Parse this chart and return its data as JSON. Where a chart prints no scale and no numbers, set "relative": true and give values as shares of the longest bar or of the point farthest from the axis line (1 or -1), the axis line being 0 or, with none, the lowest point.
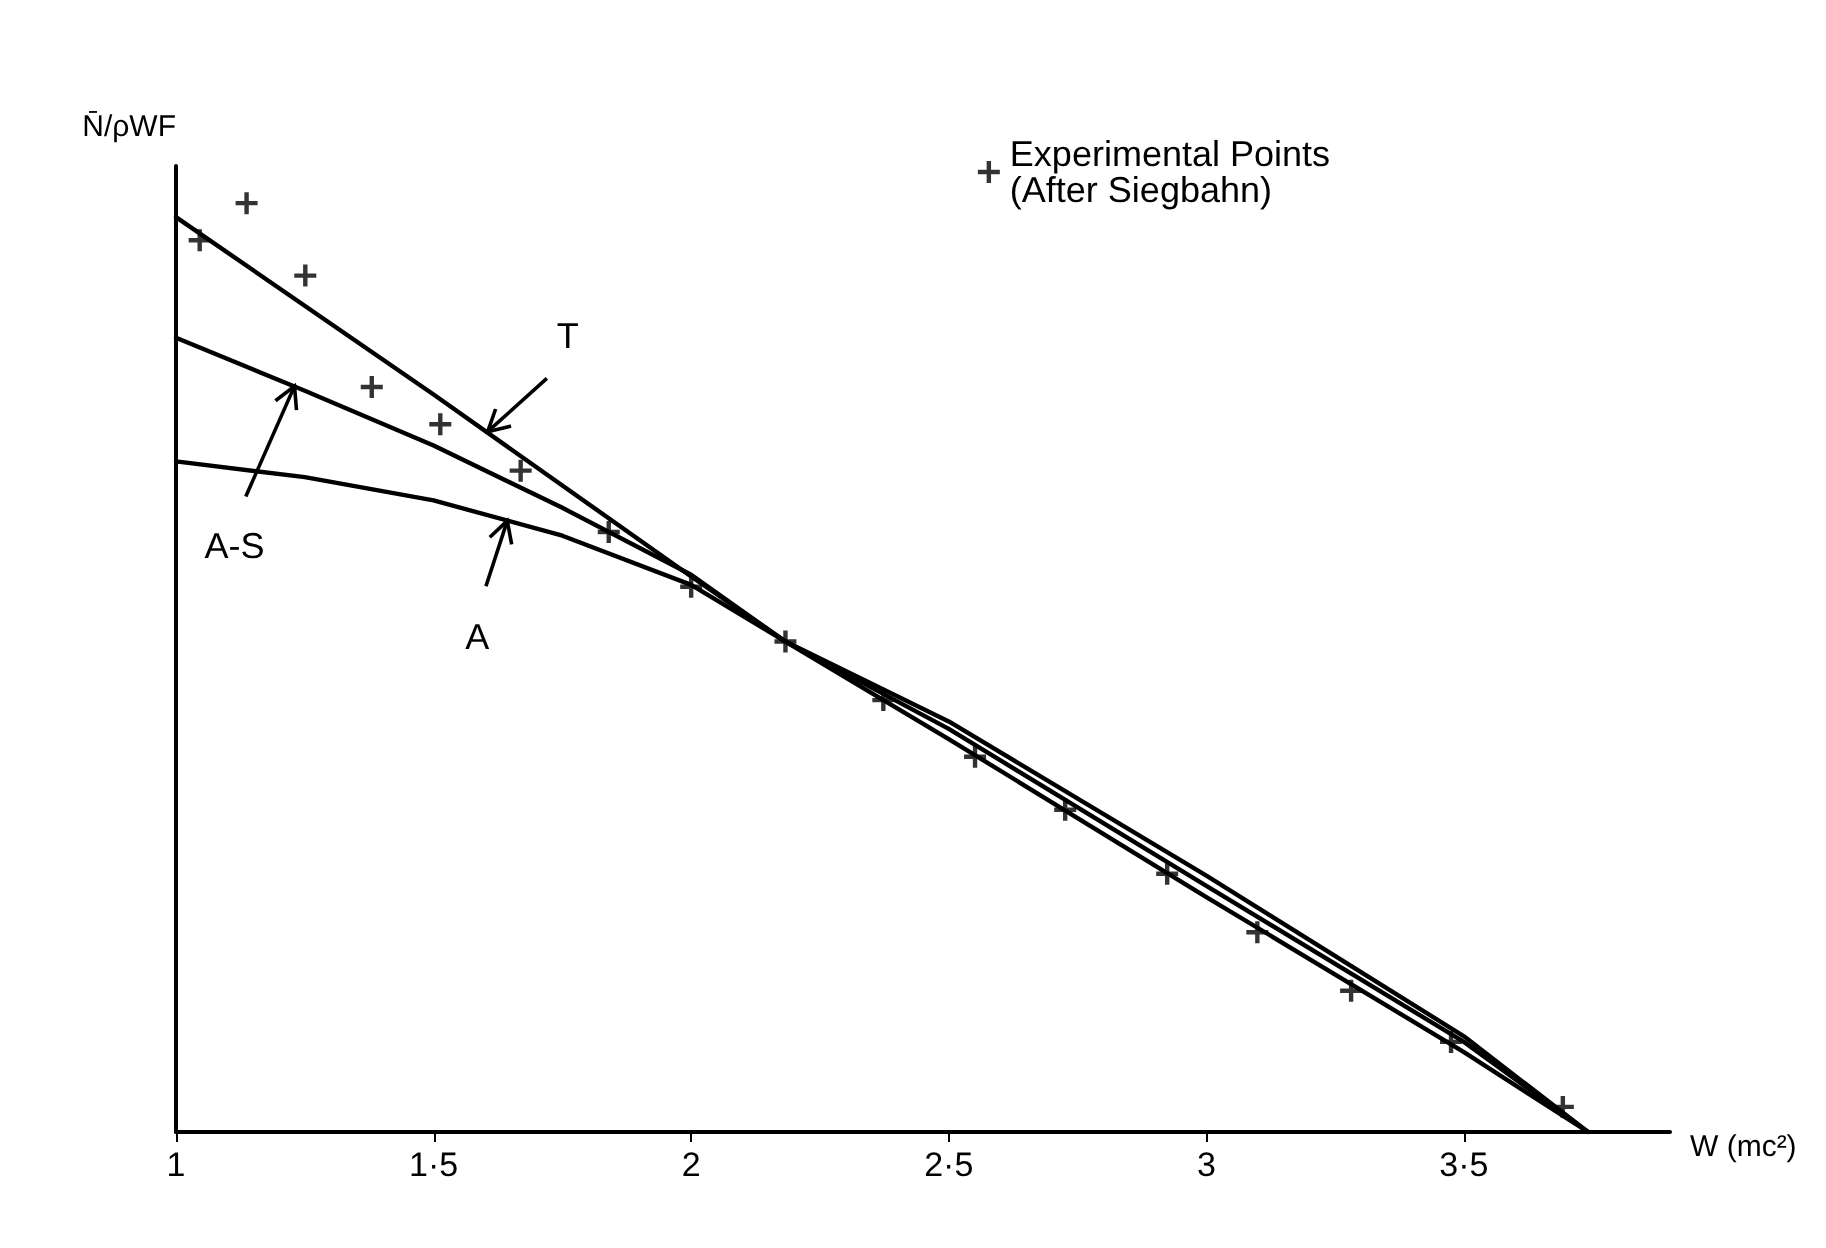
{
  "chart_data": {
    "type": "line",
    "relative": true,
    "xlabel": "W (mc²)",
    "ylabel": "N̄/ρWF",
    "xlim": [
      1,
      3.9
    ],
    "xticks": [
      1,
      {
        "value": 1.5,
        "label": "1·5"
      },
      2,
      {
        "value": 2.5,
        "label": "2·5"
      },
      3,
      {
        "value": 3.5,
        "label": "3·5"
      }
    ],
    "grid": false,
    "tick_labels": "x",
    "legend": "top right",
    "line_style": "solid",
    "series": [
      {
        "type": "scatter",
        "name": "Experimental Points (After Siegbahn)",
        "color": "#000000",
        "marker": "cross",
        "x": [
          1.046,
          1.137,
          1.251,
          1.38,
          1.513,
          1.669,
          1.84,
          2.0,
          2.183,
          2.373,
          2.551,
          2.726,
          2.924,
          3.099,
          3.281,
          3.475,
          3.692
        ],
        "values": [
          0.96,
          1.0,
          0.922,
          0.802,
          0.762,
          0.712,
          0.646,
          0.587,
          0.528,
          0.465,
          0.404,
          0.347,
          0.278,
          0.215,
          0.152,
          0.097,
          0.027
        ]
      },
      {
        "color": "#000000",
        "marker": "none",
        "x": [
          1,
          1.5,
          2,
          2.183,
          2.5,
          3,
          3.5,
          3.741
        ],
        "values": [
          0.985,
          0.794,
          0.598,
          0.528,
          0.423,
          0.253,
          0.086,
          0
        ]
      },
      {
        "color": "#000000",
        "marker": "none",
        "x": [
          1,
          1.25,
          1.5,
          1.75,
          2,
          2.183,
          2.5,
          3,
          3.5,
          3.741
        ],
        "values": [
          0.855,
          0.798,
          0.739,
          0.672,
          0.6,
          0.528,
          0.434,
          0.265,
          0.097,
          0
        ]
      },
      {
        "color": "#000000",
        "marker": "none",
        "x": [
          1,
          1.25,
          1.5,
          1.75,
          2,
          2.183,
          2.5,
          3,
          3.5,
          3.741
        ],
        "values": [
          0.722,
          0.705,
          0.68,
          0.642,
          0.589,
          0.528,
          0.442,
          0.276,
          0.103,
          0
        ]
      }
    ],
    "annotations": [
      {
        "text": "T",
        "x": 1.605,
        "y": 0.754
      },
      {
        "text": "A-S",
        "x": 1.23,
        "y": 0.803
      },
      {
        "text": "A",
        "x": 1.643,
        "y": 0.658
      }
    ]
  }
}
